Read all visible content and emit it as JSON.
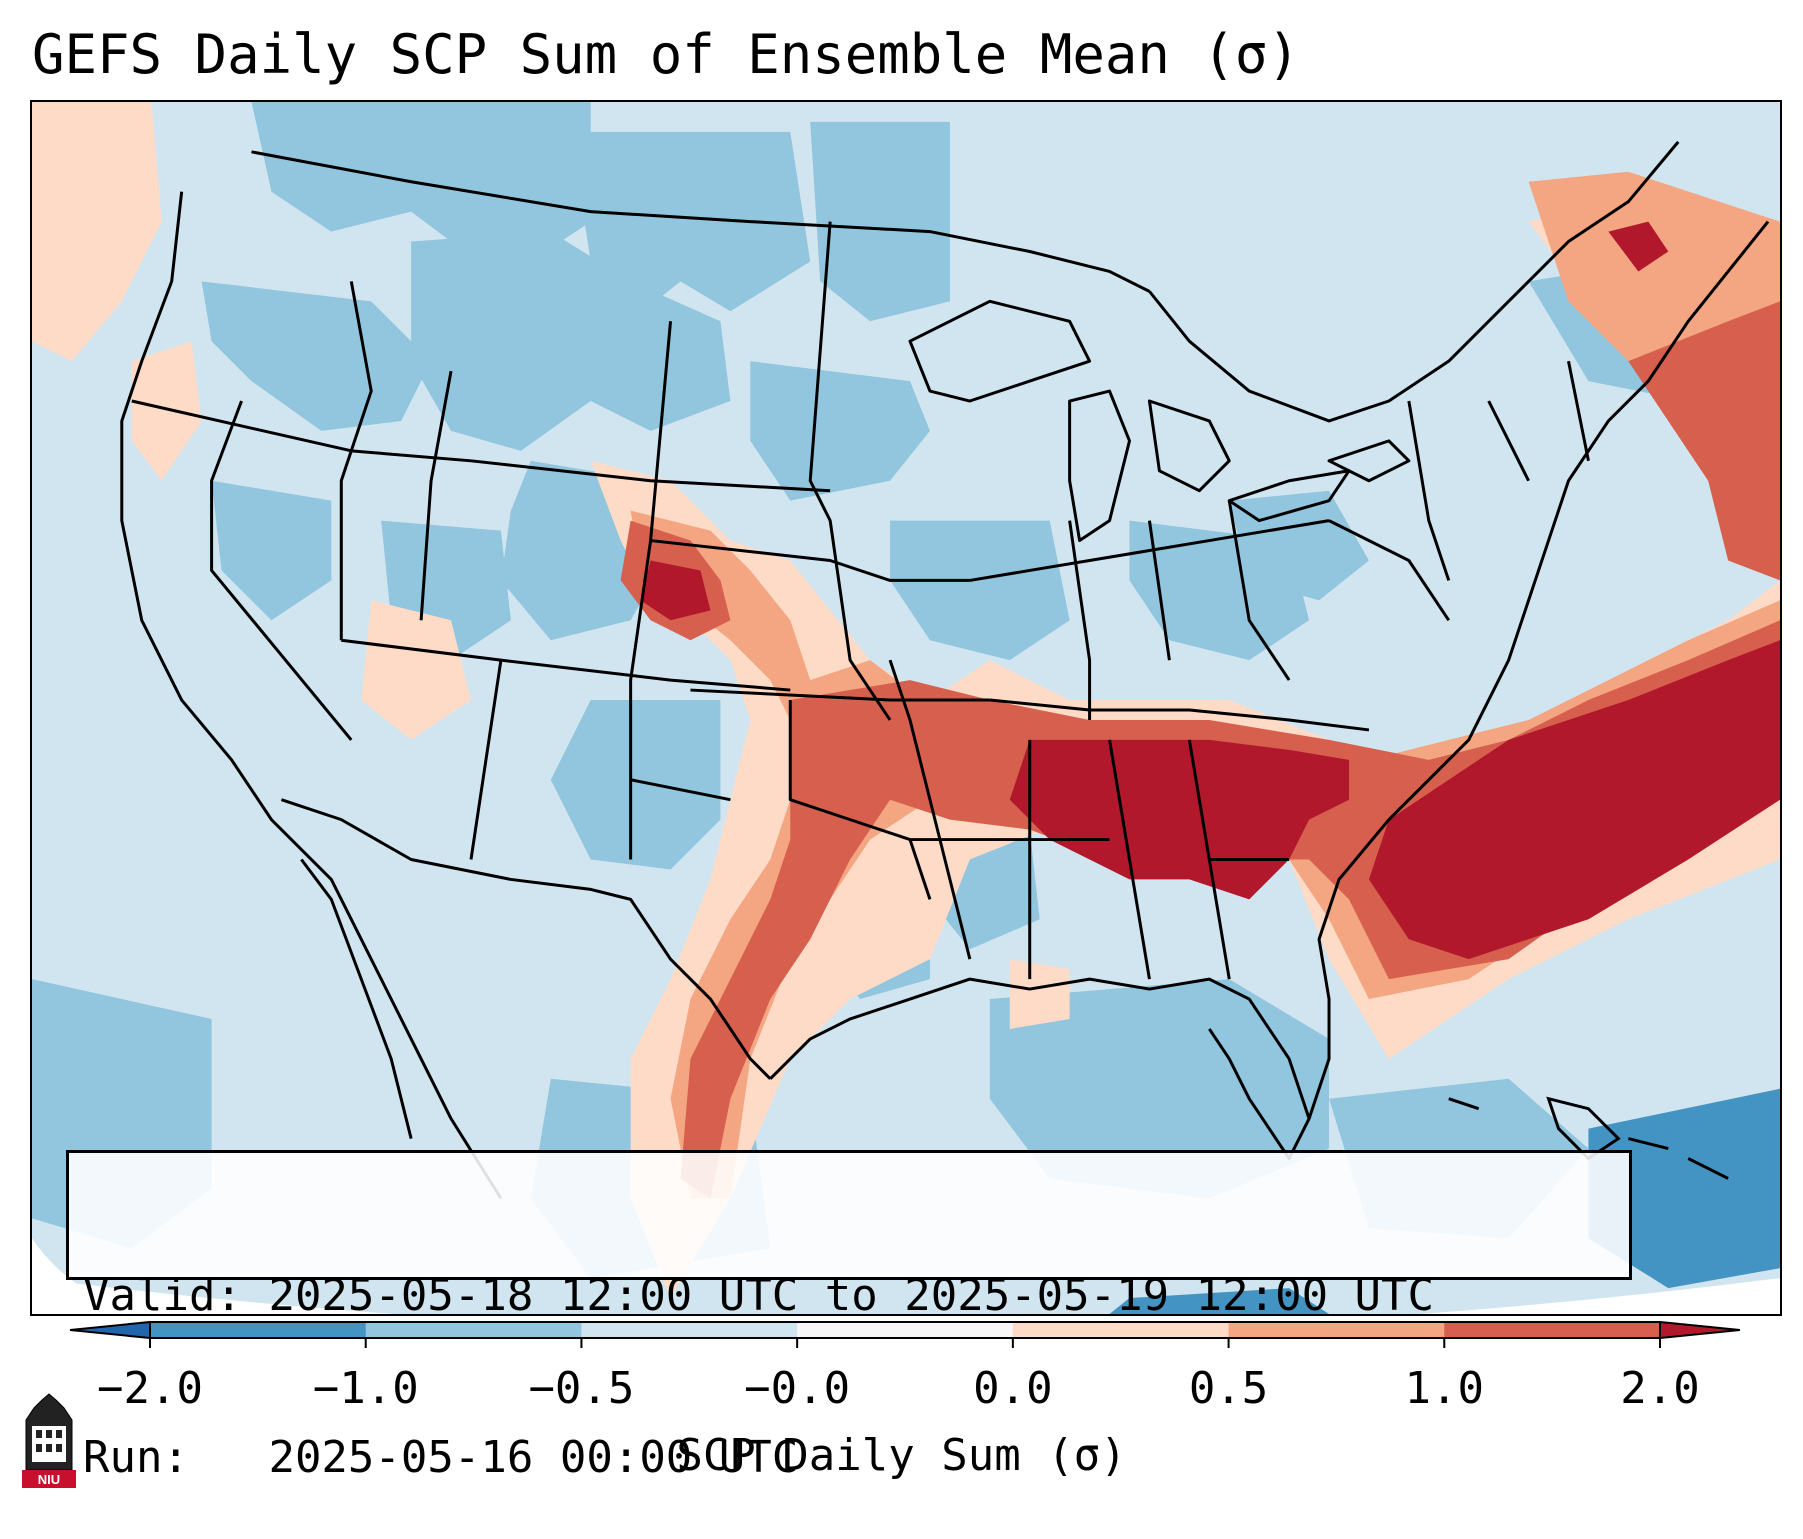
{
  "title": "GEFS Daily SCP Sum of Ensemble Mean (σ)",
  "info": {
    "valid_label": "Valid:",
    "valid_text": "2025-05-18 12:00 UTC to 2025-05-19 12:00 UTC",
    "run_label": "Run:",
    "run_text": "2025-05-16 00:00 UTC"
  },
  "colorbar": {
    "title": "SCP Daily Sum (σ)",
    "ticks": [
      "−2.0",
      "−1.0",
      "−0.5",
      "−0.0",
      "0.0",
      "0.5",
      "1.0",
      "2.0"
    ],
    "bins": [
      {
        "from": "-2.0",
        "to": "-1.0",
        "color": "#4393c3"
      },
      {
        "from": "-1.0",
        "to": "-0.5",
        "color": "#92c5de"
      },
      {
        "from": "-0.5",
        "to": "-0.0",
        "color": "#d1e5f0"
      },
      {
        "from": "-0.0",
        "to": "0.0",
        "color": "#f7f7f7"
      },
      {
        "from": "0.0",
        "to": "0.5",
        "color": "#fddbc7"
      },
      {
        "from": "0.5",
        "to": "1.0",
        "color": "#f4a582"
      },
      {
        "from": "1.0",
        "to": "2.0",
        "color": "#d6604d"
      }
    ],
    "under_color": "#2166ac",
    "over_color": "#b2182b"
  },
  "logo": {
    "text": "NIU",
    "color": "#c8102e"
  },
  "map_regions": [
    {
      "region": "Great Plains / Southern Rockies front",
      "level": "0.5 to 2.0"
    },
    {
      "region": "Tennessee Valley / Deep South",
      "level": "above 2.0"
    },
    {
      "region": "Western Atlantic off Carolinas",
      "level": "above 2.0"
    },
    {
      "region": "Western US / Northern Plains",
      "level": "-1.0 to -0.0"
    },
    {
      "region": "Caribbean / Bahamas",
      "level": "below -1.0"
    }
  ]
}
